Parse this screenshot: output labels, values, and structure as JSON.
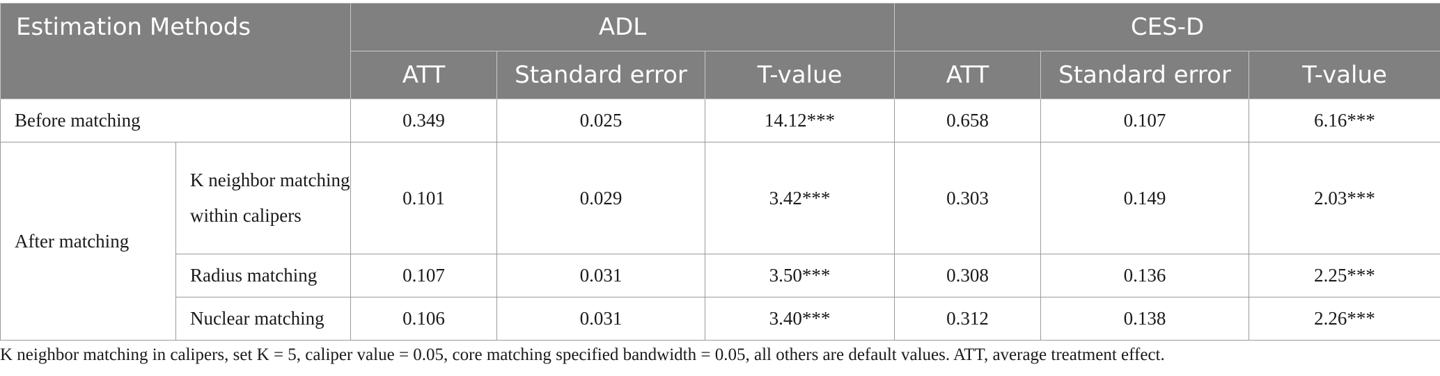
{
  "header": {
    "corner": "Estimation Methods",
    "group_adl": "ADL",
    "group_cesd": "CES-D",
    "sub": [
      "ATT",
      "Standard error",
      "T-value",
      "ATT",
      "Standard error",
      "T-value"
    ]
  },
  "rows": {
    "before": {
      "label": "Before matching",
      "values": [
        "0.349",
        "0.025",
        "14.12***",
        "0.658",
        "0.107",
        "6.16***"
      ]
    },
    "after_label": "After matching",
    "knn": {
      "label": "K neighbor matching within calipers",
      "values": [
        "0.101",
        "0.029",
        "3.42***",
        "0.303",
        "0.149",
        "2.03***"
      ]
    },
    "radius": {
      "label": "Radius matching",
      "values": [
        "0.107",
        "0.031",
        "3.50***",
        "0.308",
        "0.136",
        "2.25***"
      ]
    },
    "nuclear": {
      "label": "Nuclear matching",
      "values": [
        "0.106",
        "0.031",
        "3.40***",
        "0.312",
        "0.138",
        "2.26***"
      ]
    }
  },
  "footnote": "K neighbor matching in calipers, set K = 5, caliper value = 0.05, core matching specified bandwidth = 0.05, all others are default values. ATT, average treatment effect.",
  "colors": {
    "header_bg": "#808080",
    "header_text": "#ffffff"
  }
}
